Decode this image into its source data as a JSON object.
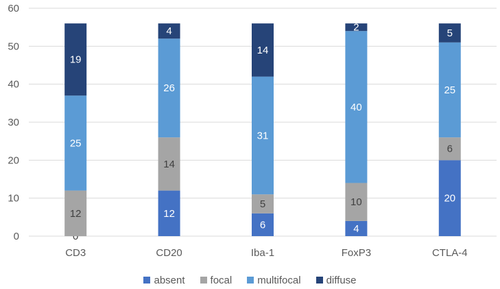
{
  "chart_data": {
    "type": "bar",
    "stacked": true,
    "categories": [
      "CD3",
      "CD20",
      "Iba-1",
      "FoxP3",
      "CTLA-4"
    ],
    "series": [
      {
        "name": "absent",
        "color": "#4472C4",
        "values": [
          0,
          12,
          6,
          4,
          20
        ]
      },
      {
        "name": "focal",
        "color": "#A5A5A5",
        "values": [
          12,
          14,
          5,
          10,
          6
        ]
      },
      {
        "name": "multifocal",
        "color": "#5B9BD5",
        "values": [
          25,
          26,
          31,
          40,
          25
        ]
      },
      {
        "name": "diffuse",
        "color": "#264478",
        "values": [
          19,
          4,
          14,
          2,
          5
        ]
      }
    ],
    "y_ticks": [
      0,
      10,
      20,
      30,
      40,
      50,
      60
    ],
    "ylim": [
      0,
      60
    ],
    "grid": true,
    "legend": "bottom",
    "title": "",
    "xlabel": "",
    "ylabel": ""
  }
}
